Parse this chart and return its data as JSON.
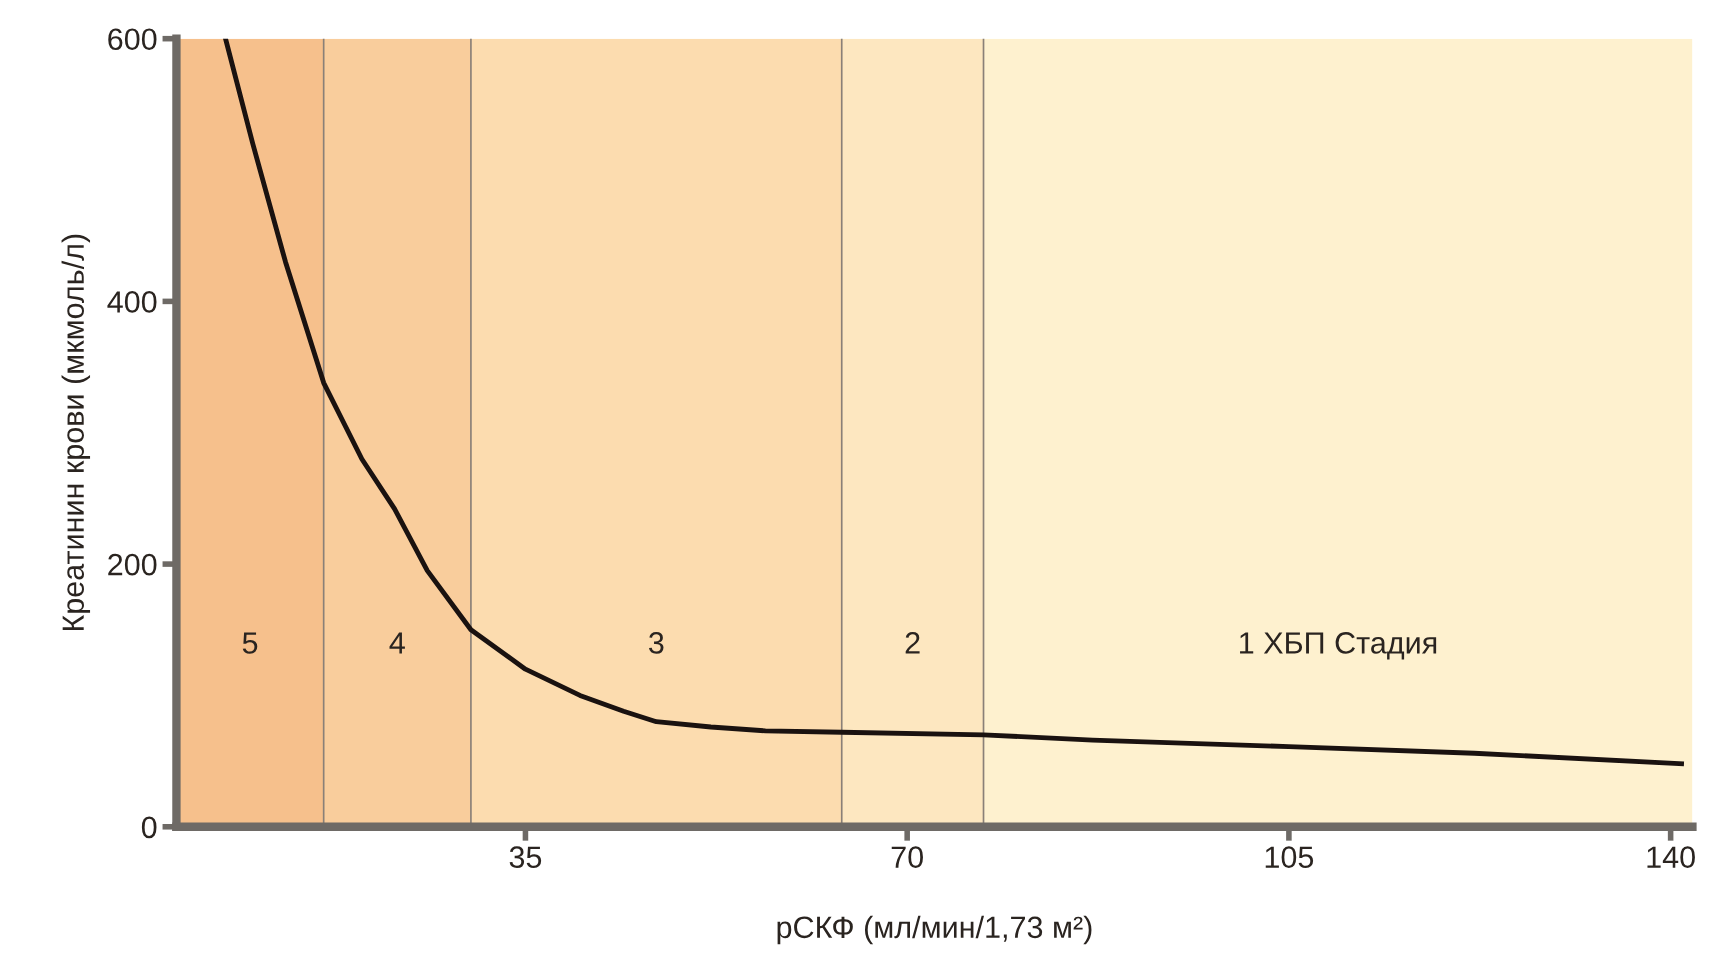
{
  "chart_data": {
    "type": "line",
    "xlabel": "рСКФ (мл/мин/1,73 м²)",
    "ylabel": "Креатинин крови (мкмоль/л)",
    "series": [
      {
        "color": "#1a1210",
        "x": [
          7.5,
          10,
          13,
          16.5,
          20,
          23,
          26,
          30,
          35,
          40,
          44,
          47,
          52,
          57,
          64,
          77,
          87,
          105,
          122,
          141
        ],
        "values": [
          600,
          520,
          430,
          338,
          280,
          242,
          195,
          150,
          120,
          100,
          88,
          80,
          76,
          73,
          72,
          70,
          66,
          61,
          56,
          48
        ]
      }
    ],
    "xlim": [
      3,
      142
    ],
    "xticks": [
      35,
      70,
      105,
      140
    ],
    "ylim": [
      0,
      600
    ],
    "yticks": [
      0,
      200,
      400,
      600
    ],
    "grid": false,
    "legend": false,
    "marker": "none",
    "line_style": "solid",
    "bands": [
      {
        "axis": "x",
        "from": 3,
        "to": 16.5,
        "label": "5",
        "color": "#f6c08c"
      },
      {
        "axis": "x",
        "from": 16.5,
        "to": 30,
        "label": "4",
        "color": "#f9cd9c"
      },
      {
        "axis": "x",
        "from": 30,
        "to": 64,
        "label": "3",
        "color": "#fcdcaf"
      },
      {
        "axis": "x",
        "from": 64,
        "to": 77,
        "label": "2",
        "color": "#fde7c0"
      },
      {
        "axis": "x",
        "from": 77,
        "to": 142,
        "label": "1 ХБП Стадия",
        "color": "#fef1cf"
      }
    ],
    "ref_lines": [
      {
        "axis": "x",
        "value": 16.5,
        "color": "#8a8078",
        "line_style": "solid"
      },
      {
        "axis": "x",
        "value": 30,
        "color": "#8a8078",
        "line_style": "solid"
      },
      {
        "axis": "x",
        "value": 64,
        "color": "#8a8078",
        "line_style": "solid"
      },
      {
        "axis": "x",
        "value": 77,
        "color": "#8a8078",
        "line_style": "solid"
      }
    ]
  }
}
